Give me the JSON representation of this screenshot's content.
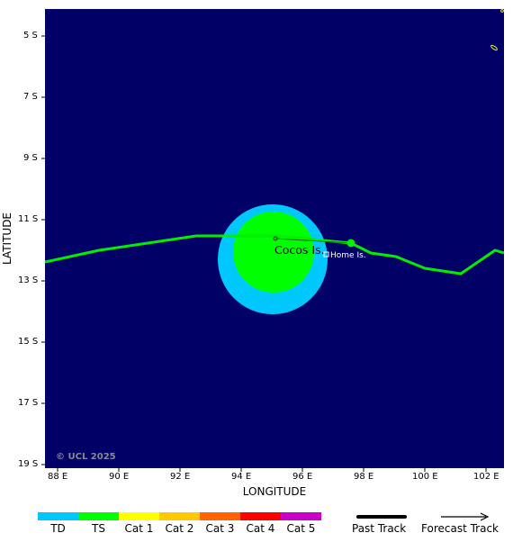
{
  "map": {
    "xlabel": "LONGITUDE",
    "ylabel": "LATITUDE",
    "lon_ticks": [
      "88 E",
      "90 E",
      "92 E",
      "94 E",
      "96 E",
      "98 E",
      "100 E",
      "102 E"
    ],
    "lat_ticks": [
      "5 S",
      "7 S",
      "9 S",
      "11 S",
      "13 S",
      "15 S",
      "17 S",
      "19 S"
    ],
    "place_labels": {
      "cocos": "Cocos Is.",
      "home": "Home Is."
    },
    "copyright": "© UCL 2025",
    "colors": {
      "ocean": "#000066",
      "td": "#00c8ff",
      "ts": "#00ff00",
      "track": "#00ee00"
    }
  },
  "legend": {
    "categories": [
      {
        "label": "TD",
        "color": "#00c8ff"
      },
      {
        "label": "TS",
        "color": "#00ff00"
      },
      {
        "label": "Cat 1",
        "color": "#ffff00"
      },
      {
        "label": "Cat 2",
        "color": "#ffc800"
      },
      {
        "label": "Cat 3",
        "color": "#ff6400"
      },
      {
        "label": "Cat 4",
        "color": "#ff0000"
      },
      {
        "label": "Cat 5",
        "color": "#c800c8"
      }
    ],
    "past_track": "Past Track",
    "forecast_track": "Forecast Track"
  }
}
